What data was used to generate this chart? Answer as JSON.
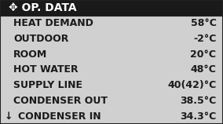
{
  "title": "✥ OP. DATA",
  "title_bg": "#1a1a1a",
  "title_fg": "#ffffff",
  "body_bg": "#d0d0d0",
  "rows": [
    {
      "label": "HEAT DEMAND",
      "value": "58°C",
      "arrow": false
    },
    {
      "label": "OUTDOOR",
      "value": "-2°C",
      "arrow": false
    },
    {
      "label": "ROOM",
      "value": "20°C",
      "arrow": false
    },
    {
      "label": "HOT WATER",
      "value": "48°C",
      "arrow": false
    },
    {
      "label": "SUPPLY LINE",
      "value": "40(42)°C",
      "arrow": false
    },
    {
      "label": "CONDENSER OUT",
      "value": "38.5°C",
      "arrow": false
    },
    {
      "label": "CONDENSER IN",
      "value": "34.3°C",
      "arrow": true
    }
  ],
  "font_family": "DejaVu Sans",
  "title_fontsize": 10.0,
  "row_fontsize": 9.0,
  "border_color": "#222222",
  "border_lw": 1.5,
  "title_arrow": "✥"
}
